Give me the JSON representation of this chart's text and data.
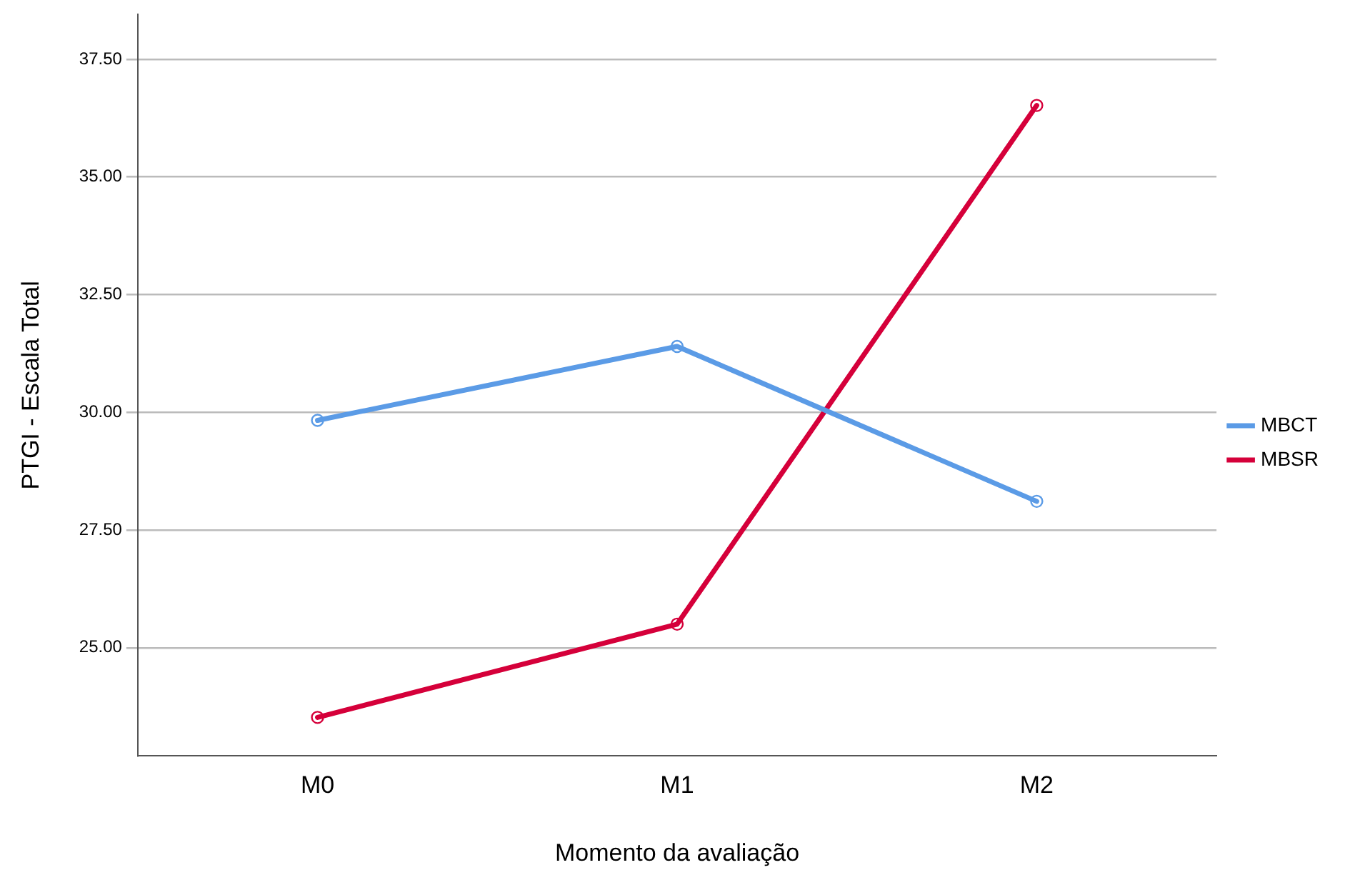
{
  "chart_data": {
    "type": "line",
    "xlabel": "Momento da avaliação",
    "ylabel": "PTGI - Escala Total",
    "categories": [
      "M0",
      "M1",
      "M2"
    ],
    "series": [
      {
        "name": "MBCT",
        "color": "#5b9be6",
        "values": [
          29.83,
          31.4,
          28.11
        ]
      },
      {
        "name": "MBSR",
        "color": "#d5003a",
        "values": [
          23.52,
          25.5,
          36.52
        ]
      }
    ],
    "ylim": [
      22.7,
      38.45
    ],
    "yticks": [
      {
        "value": 25,
        "label": "25.00"
      },
      {
        "value": 27.5,
        "label": "27.50"
      },
      {
        "value": 30,
        "label": "30.00"
      },
      {
        "value": 32.5,
        "label": "32.50"
      },
      {
        "value": 35,
        "label": "35.00"
      },
      {
        "value": 37.5,
        "label": "37.50"
      }
    ],
    "grid": "y",
    "legend": "right",
    "marker": "circle",
    "line_style": "solid"
  }
}
